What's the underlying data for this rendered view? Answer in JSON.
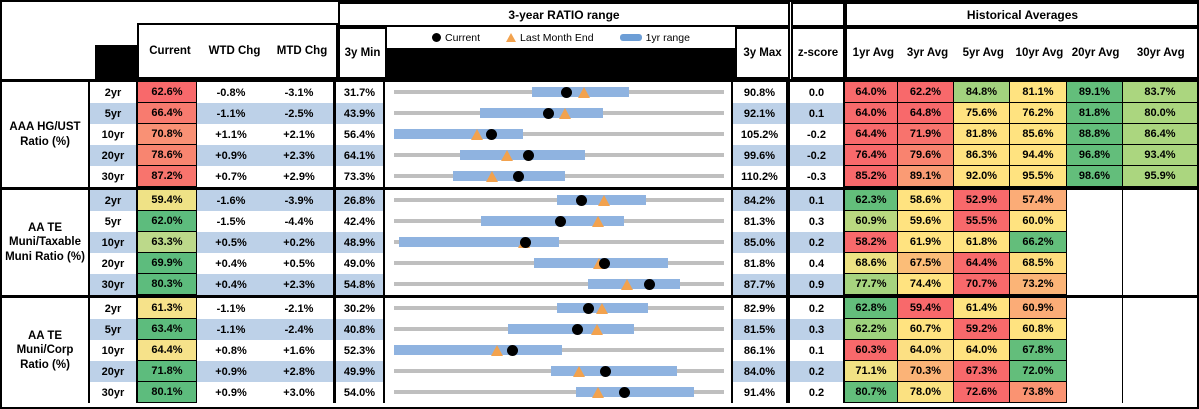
{
  "header": {
    "left_cols": [
      "Current",
      "WTD Chg",
      "MTD Chg"
    ],
    "chart_section_title": "3-year RATIO range",
    "min_label": "3y Min",
    "max_label": "3y Max",
    "zscore_label": "z-score",
    "hist_title": "Historical Averages",
    "avg_cols": [
      "1yr Avg",
      "3yr Avg",
      "5yr Avg",
      "10yr Avg",
      "20yr Avg",
      "30yr Avg"
    ],
    "legend": [
      {
        "marker": "dot",
        "label": "Current"
      },
      {
        "marker": "triangle",
        "label": "Last Month End"
      },
      {
        "marker": "bar",
        "label": "1yr range"
      }
    ]
  },
  "colors": {
    "row_alt": "#BDD1E8",
    "track_gray": "#BFBFBF",
    "range_bar_blue": "#8FB3E0",
    "triangle_orange": "#F2A24E",
    "dot_black": "#000000",
    "scale_red": "#F8696B",
    "scale_yellow": "#FFE380",
    "scale_green": "#63BE7B"
  },
  "chart_data": {
    "type": "table",
    "note": "Each row also plots a 3y range strip chart: gray track = 3y min-max, blue bar = 1yr range, black dot = current, orange triangle = last month end. Values in percent.",
    "groups": [
      {
        "label": "AAA HG/UST Ratio (%)",
        "rows": [
          {
            "tenor": "2yr",
            "current": "62.6%",
            "current_bg": "#F8696B",
            "wtd": "-0.8%",
            "mtd": "-3.1%",
            "min": "31.7%",
            "max": "90.8%",
            "z": "0.0",
            "avgs": [
              {
                "v": "64.0%",
                "bg": "#F8696B"
              },
              {
                "v": "62.2%",
                "bg": "#F8696B"
              },
              {
                "v": "84.8%",
                "bg": "#A2D27E"
              },
              {
                "v": "81.1%",
                "bg": "#FFE380"
              },
              {
                "v": "89.1%",
                "bg": "#63BE7B"
              },
              {
                "v": "83.7%",
                "bg": "#ABD67F"
              }
            ],
            "chart": {
              "min": 31.7,
              "max": 90.8,
              "cur": 62.6,
              "lm": 65.7,
              "bar": [
                56.4,
                73.7
              ]
            }
          },
          {
            "tenor": "5yr",
            "current": "66.4%",
            "current_bg": "#F87B6F",
            "wtd": "-1.1%",
            "mtd": "-2.5%",
            "min": "43.9%",
            "max": "92.1%",
            "z": "0.1",
            "avgs": [
              {
                "v": "64.0%",
                "bg": "#F8696B"
              },
              {
                "v": "64.8%",
                "bg": "#F8696B"
              },
              {
                "v": "75.6%",
                "bg": "#FFE380"
              },
              {
                "v": "76.2%",
                "bg": "#FFE380"
              },
              {
                "v": "81.8%",
                "bg": "#63BE7B"
              },
              {
                "v": "80.0%",
                "bg": "#ABD67F"
              }
            ],
            "chart": {
              "min": 43.9,
              "max": 92.1,
              "cur": 66.4,
              "lm": 68.9,
              "bar": [
                56.4,
                74.5
              ]
            }
          },
          {
            "tenor": "10yr",
            "current": "70.8%",
            "current_bg": "#F99175",
            "wtd": "+1.1%",
            "mtd": "+2.1%",
            "min": "56.4%",
            "max": "105.2%",
            "z": "-0.2",
            "avgs": [
              {
                "v": "64.4%",
                "bg": "#F8696B"
              },
              {
                "v": "71.9%",
                "bg": "#F8736D"
              },
              {
                "v": "81.8%",
                "bg": "#FFE380"
              },
              {
                "v": "85.6%",
                "bg": "#FFE380"
              },
              {
                "v": "88.8%",
                "bg": "#63BE7B"
              },
              {
                "v": "86.4%",
                "bg": "#ABD67F"
              }
            ],
            "chart": {
              "min": 56.4,
              "max": 105.2,
              "cur": 70.8,
              "lm": 68.7,
              "bar": [
                56.4,
                75.5
              ]
            }
          },
          {
            "tenor": "20yr",
            "current": "78.6%",
            "current_bg": "#F88570",
            "wtd": "+0.9%",
            "mtd": "+2.3%",
            "min": "64.1%",
            "max": "99.6%",
            "z": "-0.2",
            "avgs": [
              {
                "v": "76.4%",
                "bg": "#F8696B"
              },
              {
                "v": "79.6%",
                "bg": "#F9836F"
              },
              {
                "v": "86.3%",
                "bg": "#FFE380"
              },
              {
                "v": "94.4%",
                "bg": "#FFE380"
              },
              {
                "v": "96.8%",
                "bg": "#63BE7B"
              },
              {
                "v": "93.4%",
                "bg": "#ABD67F"
              }
            ],
            "chart": {
              "min": 64.1,
              "max": 99.6,
              "cur": 78.6,
              "lm": 76.3,
              "bar": [
                71.2,
                84.7
              ]
            }
          },
          {
            "tenor": "30yr",
            "current": "87.2%",
            "current_bg": "#F8746D",
            "wtd": "+0.7%",
            "mtd": "+2.9%",
            "min": "73.3%",
            "max": "110.2%",
            "z": "-0.3",
            "avgs": [
              {
                "v": "85.2%",
                "bg": "#F8696B"
              },
              {
                "v": "89.1%",
                "bg": "#FA9B74"
              },
              {
                "v": "92.0%",
                "bg": "#FFE380"
              },
              {
                "v": "95.5%",
                "bg": "#FFE380"
              },
              {
                "v": "98.6%",
                "bg": "#63BE7B"
              },
              {
                "v": "95.9%",
                "bg": "#ABD67F"
              }
            ],
            "chart": {
              "min": 73.3,
              "max": 110.2,
              "cur": 87.2,
              "lm": 84.3,
              "bar": [
                79.9,
                92.4
              ]
            }
          }
        ]
      },
      {
        "label": "AA TE Muni/Taxable Muni Ratio (%)",
        "rows": [
          {
            "tenor": "2yr",
            "current": "59.4%",
            "current_bg": "#EFE286",
            "wtd": "-1.6%",
            "mtd": "-3.9%",
            "min": "26.8%",
            "max": "84.2%",
            "z": "0.1",
            "avgs": [
              {
                "v": "62.3%",
                "bg": "#63BE7B"
              },
              {
                "v": "58.6%",
                "bg": "#FFE380"
              },
              {
                "v": "52.9%",
                "bg": "#F8696B"
              },
              {
                "v": "57.4%",
                "bg": "#FBAC77"
              },
              {
                "v": "",
                "bg": ""
              },
              {
                "v": "",
                "bg": ""
              }
            ],
            "chart": {
              "min": 26.8,
              "max": 84.2,
              "cur": 59.4,
              "lm": 63.3,
              "bar": [
                55.2,
                70.7
              ]
            }
          },
          {
            "tenor": "5yr",
            "current": "62.0%",
            "current_bg": "#5DBC7D",
            "wtd": "-1.5%",
            "mtd": "-4.4%",
            "min": "42.4%",
            "max": "81.3%",
            "z": "0.3",
            "avgs": [
              {
                "v": "60.9%",
                "bg": "#B9D880"
              },
              {
                "v": "59.6%",
                "bg": "#FFE380"
              },
              {
                "v": "55.5%",
                "bg": "#F8696B"
              },
              {
                "v": "60.0%",
                "bg": "#FFE380"
              },
              {
                "v": "",
                "bg": ""
              },
              {
                "v": "",
                "bg": ""
              }
            ],
            "chart": {
              "min": 42.4,
              "max": 81.3,
              "cur": 62.0,
              "lm": 66.4,
              "bar": [
                52.6,
                69.5
              ]
            }
          },
          {
            "tenor": "10yr",
            "current": "63.3%",
            "current_bg": "#BCD98A",
            "wtd": "+0.5%",
            "mtd": "+0.2%",
            "min": "48.9%",
            "max": "85.0%",
            "z": "0.2",
            "avgs": [
              {
                "v": "58.2%",
                "bg": "#F8696B"
              },
              {
                "v": "61.9%",
                "bg": "#FFE380"
              },
              {
                "v": "61.8%",
                "bg": "#FFE380"
              },
              {
                "v": "66.2%",
                "bg": "#63BE7B"
              },
              {
                "v": "",
                "bg": ""
              },
              {
                "v": "",
                "bg": ""
              }
            ],
            "chart": {
              "min": 48.9,
              "max": 85.0,
              "cur": 63.3,
              "lm": 63.1,
              "bar": [
                49.5,
                66.9
              ]
            }
          },
          {
            "tenor": "20yr",
            "current": "69.9%",
            "current_bg": "#5DBC7D",
            "wtd": "+0.4%",
            "mtd": "+0.5%",
            "min": "49.0%",
            "max": "81.8%",
            "z": "0.4",
            "avgs": [
              {
                "v": "68.6%",
                "bg": "#EDE283"
              },
              {
                "v": "67.5%",
                "bg": "#FBBD78"
              },
              {
                "v": "64.4%",
                "bg": "#F8696B"
              },
              {
                "v": "68.5%",
                "bg": "#FEDD7E"
              },
              {
                "v": "",
                "bg": ""
              },
              {
                "v": "",
                "bg": ""
              }
            ],
            "chart": {
              "min": 49.0,
              "max": 81.8,
              "cur": 69.9,
              "lm": 69.4,
              "bar": [
                62.9,
                76.2
              ]
            }
          },
          {
            "tenor": "30yr",
            "current": "80.3%",
            "current_bg": "#5DBC7D",
            "wtd": "+0.4%",
            "mtd": "+2.3%",
            "min": "54.8%",
            "max": "87.7%",
            "z": "0.9",
            "avgs": [
              {
                "v": "77.7%",
                "bg": "#A6D47F"
              },
              {
                "v": "74.4%",
                "bg": "#FFE380"
              },
              {
                "v": "70.7%",
                "bg": "#F8696B"
              },
              {
                "v": "73.2%",
                "bg": "#FBB477"
              },
              {
                "v": "",
                "bg": ""
              },
              {
                "v": "",
                "bg": ""
              }
            ],
            "chart": {
              "min": 54.8,
              "max": 87.7,
              "cur": 80.3,
              "lm": 78.0,
              "bar": [
                74.1,
                83.3
              ]
            }
          }
        ]
      },
      {
        "label": "AA TE Muni/Corp Ratio (%)",
        "rows": [
          {
            "tenor": "2yr",
            "current": "61.3%",
            "current_bg": "#F6E28A",
            "wtd": "-1.1%",
            "mtd": "-2.1%",
            "min": "30.2%",
            "max": "82.9%",
            "z": "0.2",
            "avgs": [
              {
                "v": "62.8%",
                "bg": "#63BE7B"
              },
              {
                "v": "59.4%",
                "bg": "#F8696B"
              },
              {
                "v": "61.4%",
                "bg": "#FFE380"
              },
              {
                "v": "60.9%",
                "bg": "#FBAC77"
              },
              {
                "v": "",
                "bg": ""
              },
              {
                "v": "",
                "bg": ""
              }
            ],
            "chart": {
              "min": 30.2,
              "max": 82.9,
              "cur": 61.3,
              "lm": 63.4,
              "bar": [
                56.3,
                70.7
              ]
            }
          },
          {
            "tenor": "5yr",
            "current": "63.4%",
            "current_bg": "#5DBC7D",
            "wtd": "-1.1%",
            "mtd": "-2.4%",
            "min": "40.8%",
            "max": "81.5%",
            "z": "0.3",
            "avgs": [
              {
                "v": "62.2%",
                "bg": "#9ED37E"
              },
              {
                "v": "60.7%",
                "bg": "#FFE380"
              },
              {
                "v": "59.2%",
                "bg": "#F8696B"
              },
              {
                "v": "60.8%",
                "bg": "#FFE380"
              },
              {
                "v": "",
                "bg": ""
              },
              {
                "v": "",
                "bg": ""
              }
            ],
            "chart": {
              "min": 40.8,
              "max": 81.5,
              "cur": 63.4,
              "lm": 65.8,
              "bar": [
                54.8,
                70.4
              ]
            }
          },
          {
            "tenor": "10yr",
            "current": "64.4%",
            "current_bg": "#F6E28A",
            "wtd": "+0.8%",
            "mtd": "+1.6%",
            "min": "52.3%",
            "max": "86.1%",
            "z": "0.1",
            "avgs": [
              {
                "v": "60.3%",
                "bg": "#F8696B"
              },
              {
                "v": "64.0%",
                "bg": "#FCE083"
              },
              {
                "v": "64.0%",
                "bg": "#FFE380"
              },
              {
                "v": "67.8%",
                "bg": "#63BE7B"
              },
              {
                "v": "",
                "bg": ""
              },
              {
                "v": "",
                "bg": ""
              }
            ],
            "chart": {
              "min": 52.3,
              "max": 86.1,
              "cur": 64.4,
              "lm": 62.8,
              "bar": [
                52.3,
                69.5
              ]
            }
          },
          {
            "tenor": "20yr",
            "current": "71.8%",
            "current_bg": "#5DBC7D",
            "wtd": "+0.9%",
            "mtd": "+2.8%",
            "min": "49.9%",
            "max": "84.0%",
            "z": "0.2",
            "avgs": [
              {
                "v": "71.1%",
                "bg": "#F1E284"
              },
              {
                "v": "70.3%",
                "bg": "#FBB377"
              },
              {
                "v": "67.3%",
                "bg": "#F8696B"
              },
              {
                "v": "72.0%",
                "bg": "#63BE7B"
              },
              {
                "v": "",
                "bg": ""
              },
              {
                "v": "",
                "bg": ""
              }
            ],
            "chart": {
              "min": 49.9,
              "max": 84.0,
              "cur": 71.8,
              "lm": 69.0,
              "bar": [
                66.1,
                79.1
              ]
            }
          },
          {
            "tenor": "30yr",
            "current": "80.1%",
            "current_bg": "#5DBC7D",
            "wtd": "+0.9%",
            "mtd": "+3.0%",
            "min": "54.0%",
            "max": "91.4%",
            "z": "0.2",
            "avgs": [
              {
                "v": "80.7%",
                "bg": "#63BE7B"
              },
              {
                "v": "78.0%",
                "bg": "#FBE181"
              },
              {
                "v": "72.6%",
                "bg": "#F8696B"
              },
              {
                "v": "73.8%",
                "bg": "#FA9372"
              },
              {
                "v": "",
                "bg": ""
              },
              {
                "v": "",
                "bg": ""
              }
            ],
            "chart": {
              "min": 54.0,
              "max": 91.4,
              "cur": 80.1,
              "lm": 77.1,
              "bar": [
                74.6,
                88.0
              ]
            }
          }
        ]
      }
    ]
  }
}
